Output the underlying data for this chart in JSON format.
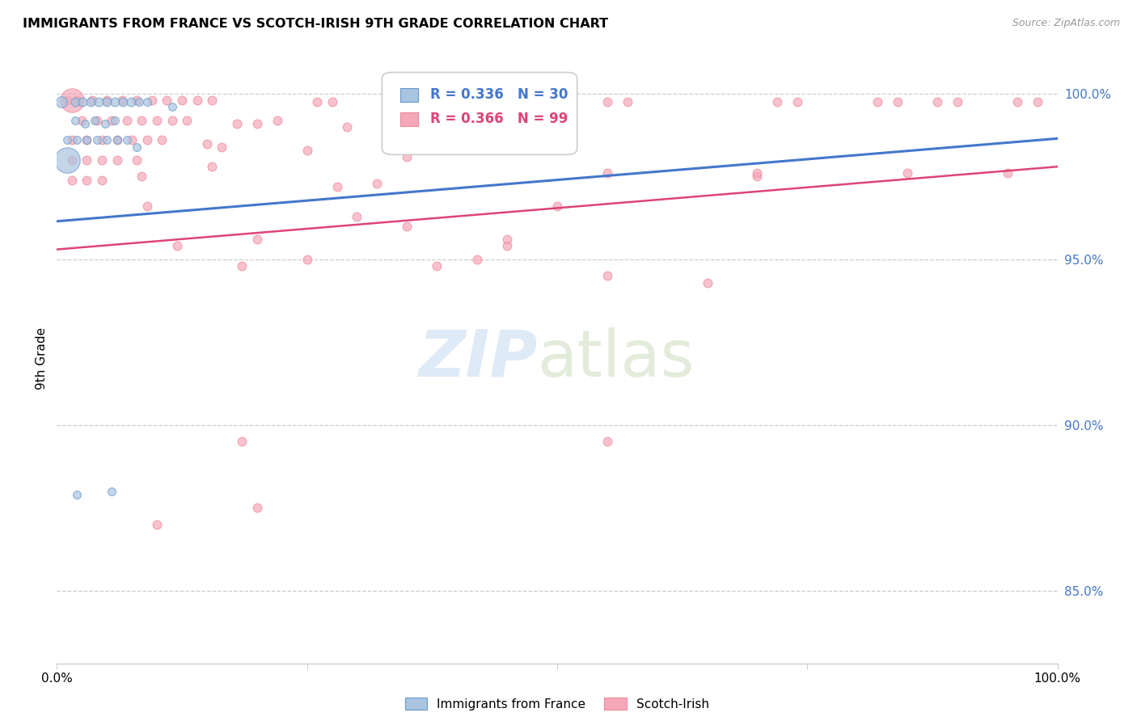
{
  "title": "IMMIGRANTS FROM FRANCE VS SCOTCH-IRISH 9TH GRADE CORRELATION CHART",
  "source": "Source: ZipAtlas.com",
  "ylabel": "9th Grade",
  "ytick_labels": [
    "100.0%",
    "95.0%",
    "90.0%",
    "85.0%"
  ],
  "ytick_values": [
    1.0,
    0.95,
    0.9,
    0.85
  ],
  "xlim": [
    0.0,
    1.0
  ],
  "ylim": [
    0.828,
    1.012
  ],
  "legend_blue_label": "Immigrants from France",
  "legend_pink_label": "Scotch-Irish",
  "legend_R_blue": "R = 0.336",
  "legend_N_blue": "N = 30",
  "legend_R_pink": "R = 0.366",
  "legend_N_pink": "N = 99",
  "blue_color": "#a8c4e0",
  "pink_color": "#f4a8b8",
  "blue_edge_color": "#6699cc",
  "pink_edge_color": "#ee8899",
  "trendline_blue": "#4477cc",
  "trendline_pink": "#dd4477",
  "blue_trend_x": [
    0.0,
    1.0
  ],
  "blue_trend_y": [
    0.9615,
    0.9865
  ],
  "pink_trend_x": [
    0.0,
    1.0
  ],
  "pink_trend_y": [
    0.953,
    0.978
  ],
  "blue_points": [
    [
      0.005,
      0.9975,
      14
    ],
    [
      0.018,
      0.9975,
      11
    ],
    [
      0.026,
      0.9975,
      11
    ],
    [
      0.034,
      0.9975,
      11
    ],
    [
      0.042,
      0.9975,
      11
    ],
    [
      0.05,
      0.9975,
      11
    ],
    [
      0.058,
      0.9975,
      11
    ],
    [
      0.066,
      0.9975,
      11
    ],
    [
      0.074,
      0.9975,
      11
    ],
    [
      0.082,
      0.9975,
      10
    ],
    [
      0.09,
      0.9975,
      10
    ],
    [
      0.018,
      0.992,
      10
    ],
    [
      0.028,
      0.991,
      10
    ],
    [
      0.038,
      0.992,
      10
    ],
    [
      0.048,
      0.991,
      10
    ],
    [
      0.058,
      0.992,
      10
    ],
    [
      0.01,
      0.986,
      10
    ],
    [
      0.02,
      0.986,
      10
    ],
    [
      0.03,
      0.986,
      10
    ],
    [
      0.04,
      0.986,
      10
    ],
    [
      0.05,
      0.986,
      10
    ],
    [
      0.06,
      0.986,
      10
    ],
    [
      0.07,
      0.986,
      10
    ],
    [
      0.01,
      0.98,
      32
    ],
    [
      0.08,
      0.984,
      10
    ],
    [
      0.115,
      0.996,
      10
    ],
    [
      0.055,
      0.88,
      10
    ],
    [
      0.02,
      0.879,
      10
    ]
  ],
  "pink_points": [
    [
      0.01,
      0.998,
      11
    ],
    [
      0.02,
      0.998,
      11
    ],
    [
      0.035,
      0.998,
      11
    ],
    [
      0.05,
      0.998,
      11
    ],
    [
      0.065,
      0.998,
      11
    ],
    [
      0.08,
      0.998,
      11
    ],
    [
      0.095,
      0.998,
      11
    ],
    [
      0.11,
      0.998,
      11
    ],
    [
      0.125,
      0.998,
      11
    ],
    [
      0.14,
      0.998,
      11
    ],
    [
      0.155,
      0.998,
      11
    ],
    [
      0.26,
      0.9975,
      11
    ],
    [
      0.275,
      0.9975,
      11
    ],
    [
      0.55,
      0.9975,
      11
    ],
    [
      0.57,
      0.9975,
      11
    ],
    [
      0.72,
      0.9975,
      11
    ],
    [
      0.74,
      0.9975,
      11
    ],
    [
      0.82,
      0.9975,
      11
    ],
    [
      0.84,
      0.9975,
      11
    ],
    [
      0.88,
      0.9975,
      11
    ],
    [
      0.9,
      0.9975,
      11
    ],
    [
      0.96,
      0.9975,
      11
    ],
    [
      0.98,
      0.9975,
      11
    ],
    [
      0.025,
      0.992,
      11
    ],
    [
      0.04,
      0.992,
      11
    ],
    [
      0.055,
      0.992,
      11
    ],
    [
      0.07,
      0.992,
      11
    ],
    [
      0.085,
      0.992,
      11
    ],
    [
      0.1,
      0.992,
      11
    ],
    [
      0.115,
      0.992,
      11
    ],
    [
      0.13,
      0.992,
      11
    ],
    [
      0.18,
      0.991,
      11
    ],
    [
      0.2,
      0.991,
      11
    ],
    [
      0.22,
      0.992,
      11
    ],
    [
      0.29,
      0.99,
      11
    ],
    [
      0.38,
      0.987,
      11
    ],
    [
      0.42,
      0.987,
      11
    ],
    [
      0.45,
      0.987,
      11
    ],
    [
      0.015,
      0.986,
      11
    ],
    [
      0.03,
      0.986,
      11
    ],
    [
      0.045,
      0.986,
      11
    ],
    [
      0.06,
      0.986,
      11
    ],
    [
      0.075,
      0.986,
      11
    ],
    [
      0.09,
      0.986,
      11
    ],
    [
      0.105,
      0.986,
      11
    ],
    [
      0.015,
      0.98,
      11
    ],
    [
      0.03,
      0.98,
      11
    ],
    [
      0.045,
      0.98,
      11
    ],
    [
      0.06,
      0.98,
      11
    ],
    [
      0.08,
      0.98,
      11
    ],
    [
      0.015,
      0.974,
      11
    ],
    [
      0.03,
      0.974,
      11
    ],
    [
      0.045,
      0.974,
      11
    ],
    [
      0.015,
      0.998,
      30
    ],
    [
      0.15,
      0.985,
      11
    ],
    [
      0.165,
      0.984,
      11
    ],
    [
      0.25,
      0.983,
      11
    ],
    [
      0.35,
      0.981,
      11
    ],
    [
      0.155,
      0.978,
      11
    ],
    [
      0.085,
      0.975,
      11
    ],
    [
      0.28,
      0.972,
      11
    ],
    [
      0.09,
      0.966,
      11
    ],
    [
      0.35,
      0.96,
      11
    ],
    [
      0.12,
      0.954,
      11
    ],
    [
      0.45,
      0.954,
      11
    ],
    [
      0.25,
      0.95,
      11
    ],
    [
      0.38,
      0.948,
      11
    ],
    [
      0.55,
      0.945,
      11
    ],
    [
      0.65,
      0.943,
      11
    ],
    [
      0.42,
      0.95,
      11
    ],
    [
      0.32,
      0.973,
      11
    ],
    [
      0.5,
      0.966,
      11
    ],
    [
      0.7,
      0.975,
      11
    ],
    [
      0.3,
      0.963,
      11
    ],
    [
      0.185,
      0.948,
      11
    ],
    [
      0.2,
      0.956,
      11
    ],
    [
      0.45,
      0.956,
      11
    ],
    [
      0.85,
      0.976,
      11
    ],
    [
      0.7,
      0.976,
      11
    ],
    [
      0.95,
      0.976,
      11
    ],
    [
      0.55,
      0.976,
      11
    ],
    [
      0.1,
      0.87,
      11
    ],
    [
      0.2,
      0.875,
      11
    ],
    [
      0.55,
      0.895,
      11
    ],
    [
      0.185,
      0.895,
      11
    ]
  ]
}
